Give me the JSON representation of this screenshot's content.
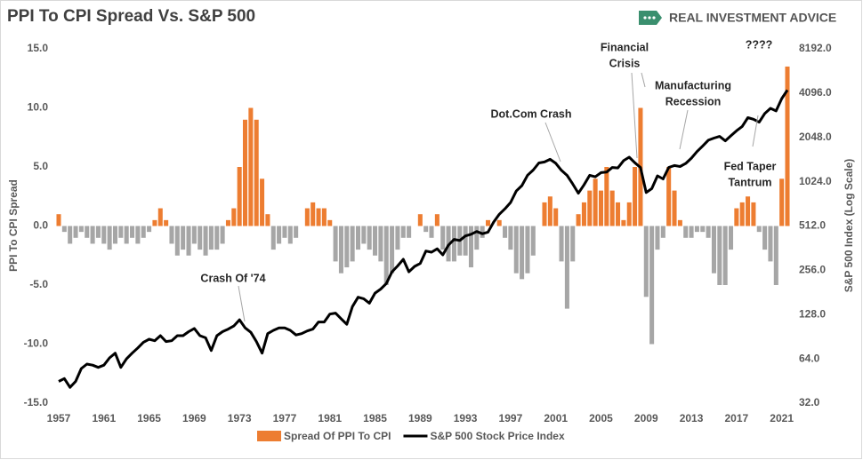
{
  "chart_data": {
    "type": "bar_line",
    "title": "PPI To CPI Spread Vs. S&P 500",
    "brand": "REAL INVESTMENT ADVICE",
    "ylabel": "PPI To CPI Spread",
    "y2label": "S&P 500 Index (Log Scale)",
    "annotations": [
      "Crash Of '74",
      "Dot.Com Crash",
      "Financial",
      "Crisis",
      "Manufacturing",
      "Recession",
      "Fed Taper",
      "Tantrum",
      "????"
    ],
    "x": [
      1957,
      1957.5,
      1958,
      1958.5,
      1959,
      1959.5,
      1960,
      1960.5,
      1961,
      1961.5,
      1962,
      1962.5,
      1963,
      1963.5,
      1964,
      1964.5,
      1965,
      1965.5,
      1966,
      1966.5,
      1967,
      1967.5,
      1968,
      1968.5,
      1969,
      1969.5,
      1970,
      1970.5,
      1971,
      1971.5,
      1972,
      1972.5,
      1973,
      1973.5,
      1974,
      1974.5,
      1975,
      1975.5,
      1976,
      1976.5,
      1977,
      1977.5,
      1978,
      1978.5,
      1979,
      1979.5,
      1980,
      1980.5,
      1981,
      1981.5,
      1982,
      1982.5,
      1983,
      1983.5,
      1984,
      1984.5,
      1985,
      1985.5,
      1986,
      1986.5,
      1987,
      1987.5,
      1988,
      1988.5,
      1989,
      1989.5,
      1990,
      1990.5,
      1991,
      1991.5,
      1992,
      1992.5,
      1993,
      1993.5,
      1994,
      1994.5,
      1995,
      1995.5,
      1996,
      1996.5,
      1997,
      1997.5,
      1998,
      1998.5,
      1999,
      1999.5,
      2000,
      2000.5,
      2001,
      2001.5,
      2002,
      2002.5,
      2003,
      2003.5,
      2004,
      2004.5,
      2005,
      2005.5,
      2006,
      2006.5,
      2007,
      2007.5,
      2008,
      2008.5,
      2009,
      2009.5,
      2010,
      2010.5,
      2011,
      2011.5,
      2012,
      2012.5,
      2013,
      2013.5,
      2014,
      2014.5,
      2015,
      2015.5,
      2016,
      2016.5,
      2017,
      2017.5,
      2018,
      2018.5,
      2019,
      2019.5,
      2020,
      2020.5,
      2021,
      2021.5
    ],
    "series": [
      {
        "name": "Spread Of PPI To CPI",
        "color": "#ed7d31",
        "negative_color": "#a6a6a6",
        "axis": "y",
        "values": [
          1,
          -0.5,
          -1.5,
          -1,
          -0.5,
          -1,
          -1.5,
          -1,
          -1.5,
          -2,
          -1.5,
          -1,
          -1.5,
          -1,
          -1.5,
          -1,
          -0.5,
          0.5,
          1.5,
          0.5,
          -1.5,
          -2.5,
          -2,
          -2.5,
          -1.5,
          -2,
          -2.5,
          -2,
          -2,
          -1.5,
          0.5,
          1.5,
          5,
          9,
          10,
          9,
          4,
          1,
          -2,
          -1.5,
          -1,
          -1.5,
          -1,
          0,
          1.5,
          2,
          1.5,
          1.5,
          0.5,
          -3,
          -4,
          -3.5,
          -3,
          -2,
          -1.5,
          -2,
          -2.5,
          -3,
          -5,
          -4,
          -2,
          -1,
          -1,
          0,
          1,
          -0.5,
          -1,
          1,
          -2,
          -3,
          -3,
          -2.5,
          -2.5,
          -3.5,
          -2,
          -1,
          0.5,
          0,
          0.5,
          -1,
          -2,
          -4,
          -4.5,
          -4,
          -2.5,
          0,
          2,
          2.5,
          1.5,
          -3,
          -7,
          -3,
          1,
          2,
          3,
          4,
          3,
          5,
          3,
          2,
          0.5,
          2,
          5,
          10,
          -6,
          -10,
          -2,
          -1,
          5,
          3,
          0.5,
          -1,
          -1,
          -0.5,
          -0.5,
          -1,
          -4,
          -5,
          -5,
          -2,
          1.5,
          2,
          2.5,
          2,
          -0.5,
          -2,
          -3,
          -5,
          4,
          13.5
        ]
      },
      {
        "name": "S&P 500 Stock Price Index",
        "color": "#000000",
        "axis": "y2",
        "values": [
          45,
          47,
          41,
          45,
          55,
          59,
          58,
          56,
          58,
          65,
          70,
          56,
          64,
          70,
          76,
          83,
          87,
          85,
          92,
          84,
          85,
          92,
          92,
          98,
          103,
          92,
          89,
          73,
          92,
          98,
          102,
          107,
          118,
          104,
          97,
          84,
          70,
          95,
          100,
          104,
          104,
          100,
          93,
          95,
          99,
          102,
          114,
          114,
          129,
          131,
          120,
          110,
          145,
          168,
          164,
          153,
          179,
          191,
          208,
          250,
          274,
          304,
          250,
          272,
          285,
          346,
          340,
          358,
          326,
          380,
          415,
          408,
          438,
          450,
          470,
          454,
          465,
          545,
          615,
          670,
          740,
          885,
          963,
          1133,
          1229,
          1373,
          1394,
          1454,
          1366,
          1224,
          1130,
          990,
          855,
          975,
          1132,
          1105,
          1181,
          1191,
          1280,
          1270,
          1424,
          1503,
          1378,
          1280,
          865,
          919,
          1123,
          1070,
          1282,
          1320,
          1300,
          1362,
          1480,
          1640,
          1790,
          1960,
          2028,
          2080,
          1940,
          2100,
          2275,
          2430,
          2790,
          2720,
          2600,
          2980,
          3230,
          3100,
          3760,
          4300
        ]
      }
    ],
    "xlim": [
      1957,
      2021.5
    ],
    "xticks": [
      1957,
      1961,
      1965,
      1969,
      1973,
      1977,
      1981,
      1985,
      1989,
      1993,
      1997,
      2001,
      2005,
      2009,
      2013,
      2017,
      2021
    ],
    "ylim": [
      -15,
      15
    ],
    "yticks": [
      {
        "value": -15,
        "label": "-15.0"
      },
      {
        "value": -10,
        "label": "-10.0"
      },
      {
        "value": -5,
        "label": "-5.0"
      },
      {
        "value": 0,
        "label": "0.0"
      },
      {
        "value": 5,
        "label": "5.0"
      },
      {
        "value": 10,
        "label": "10.0"
      },
      {
        "value": 15,
        "label": "15.0"
      }
    ],
    "y2lim": [
      32,
      8192
    ],
    "y2ticks": [
      {
        "value": 32,
        "label": "32.0"
      },
      {
        "value": 64,
        "label": "64.0"
      },
      {
        "value": 128,
        "label": "128.0"
      },
      {
        "value": 256,
        "label": "256.0"
      },
      {
        "value": 512,
        "label": "512.0"
      },
      {
        "value": 1024,
        "label": "1024.0"
      },
      {
        "value": 2048,
        "label": "2048.0"
      },
      {
        "value": 4096,
        "label": "4096.0"
      },
      {
        "value": 8192,
        "label": "8192.0"
      }
    ],
    "y2scale": "log",
    "grid": false,
    "legend": "bottom"
  }
}
